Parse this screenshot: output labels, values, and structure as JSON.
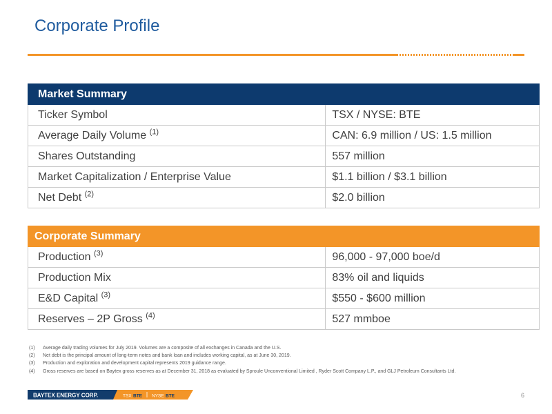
{
  "title": "Corporate Profile",
  "market": {
    "header": "Market Summary",
    "rows": [
      {
        "label": "Ticker Symbol",
        "note": "",
        "value": "TSX / NYSE: BTE"
      },
      {
        "label": "Average Daily Volume",
        "note": "(1)",
        "value": "CAN: 6.9 million / US: 1.5 million"
      },
      {
        "label": "Shares Outstanding",
        "note": "",
        "value": "557 million"
      },
      {
        "label": "Market Capitalization / Enterprise Value",
        "note": "",
        "value": "$1.1 billion / $3.1 billion"
      },
      {
        "label": "Net Debt",
        "note": "(2)",
        "value": "$2.0 billion"
      }
    ]
  },
  "corporate": {
    "header": "Corporate Summary",
    "rows": [
      {
        "label": "Production",
        "note": "(3)",
        "value": "96,000 - 97,000 boe/d"
      },
      {
        "label": "Production Mix",
        "note": "",
        "value": "83% oil and liquids"
      },
      {
        "label": "E&D Capital",
        "note": "(3)",
        "value": "$550 - $600 million"
      },
      {
        "label": "Reserves – 2P Gross",
        "note": "(4)",
        "value": "527 mmboe"
      }
    ]
  },
  "footnotes": [
    {
      "num": "(1)",
      "text": "Average daily trading volumes for July 2019. Volumes are a composite of all exchanges in Canada and the U.S."
    },
    {
      "num": "(2)",
      "text": "Net debt is the principal amount of long-term notes and bank loan and includes working capital, as at June 30, 2019."
    },
    {
      "num": "(3)",
      "text": "Production and exploration and development capital represents 2019 guidance range."
    },
    {
      "num": "(4)",
      "text": "Gross reserves are based on Baytex gross reserves as at December 31, 2018 as evaluated by Sproule Unconventional Limited , Ryder Scott Company L.P., and GLJ Petroleum Consultants Ltd."
    }
  ],
  "footer": {
    "company": "BAYTEX ENERGY CORP.",
    "tsx_prefix": "TSX",
    "tsx_ticker": "BTE",
    "nyse_prefix": "NYSE",
    "nyse_ticker": "BTE",
    "page": "6"
  },
  "colors": {
    "title": "#1f5b9e",
    "market_header": "#0d3a6e",
    "corporate_header": "#f39528",
    "accent": "#f39528"
  }
}
